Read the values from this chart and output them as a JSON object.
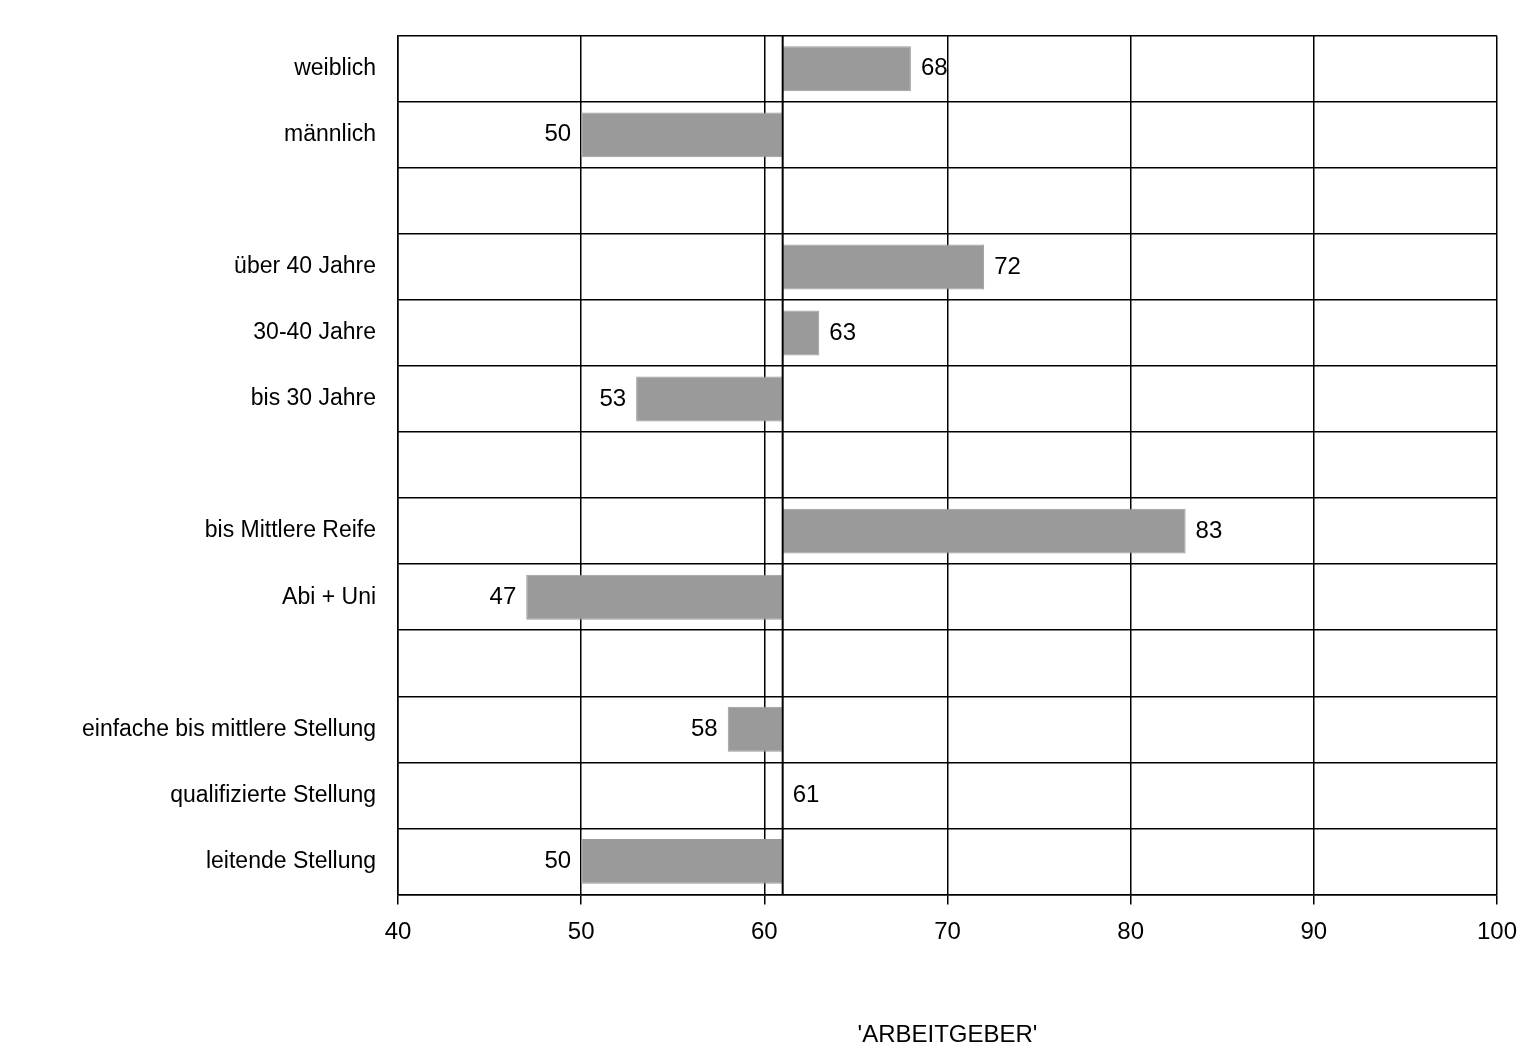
{
  "chart_data": {
    "type": "bar",
    "orientation": "horizontal",
    "categories": [
      "weiblich",
      "männlich",
      null,
      "über 40 Jahre",
      "30-40 Jahre",
      "bis 30 Jahre",
      null,
      "bis Mittlere Reife",
      "Abi + Uni",
      null,
      "einfache bis mittlere Stellung",
      "qualifizierte Stellung",
      "leitende Stellung"
    ],
    "base": [
      61,
      61,
      null,
      61,
      61,
      61,
      null,
      61,
      61,
      null,
      61,
      null,
      61
    ],
    "values": [
      7,
      -11,
      null,
      11,
      2,
      -8,
      null,
      22,
      -14,
      null,
      -3,
      null,
      -11
    ],
    "value_labels": [
      "68",
      "50",
      null,
      "72",
      "63",
      "53",
      null,
      "83",
      "47",
      null,
      "58",
      null,
      "50"
    ],
    "annotations": [
      {
        "text": "61",
        "x": 61,
        "y": "qualifizierte Stellung"
      }
    ],
    "color": "#9a9a9a",
    "xlabel": "'ARBEITGEBER'",
    "xlim": [
      40,
      100
    ],
    "xticks": [
      40,
      50,
      60,
      70,
      80,
      90,
      100
    ],
    "ref_lines": [
      {
        "axis": "x",
        "value": 61,
        "color": "#000000"
      }
    ],
    "grid": true
  }
}
